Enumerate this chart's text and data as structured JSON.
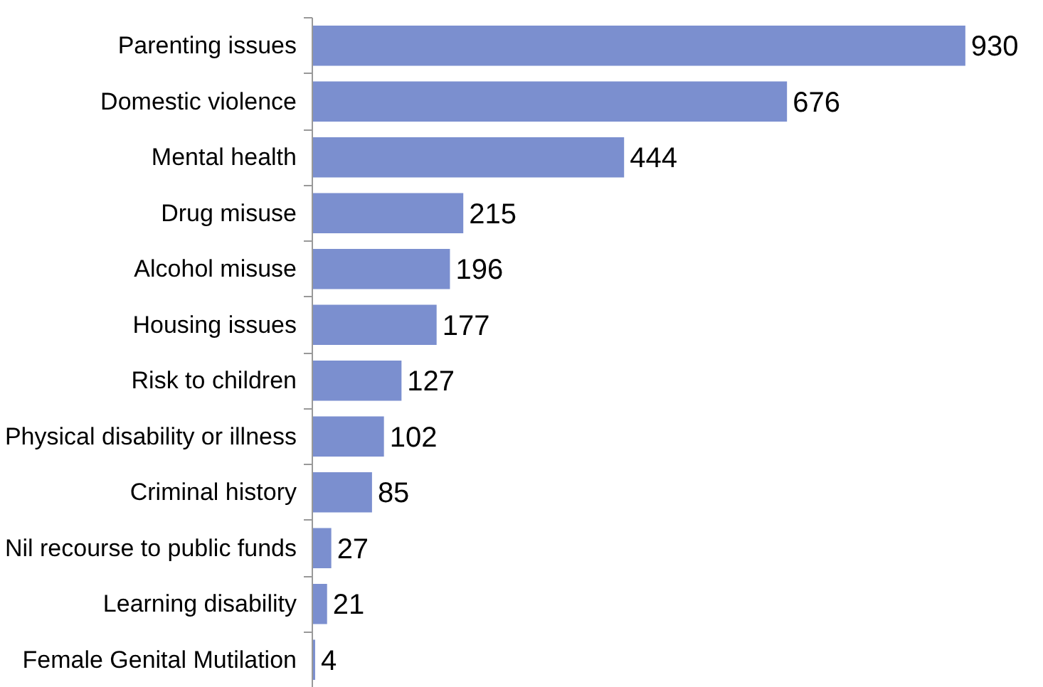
{
  "chart_data": {
    "type": "bar",
    "orientation": "horizontal",
    "categories": [
      "Parenting issues",
      "Domestic violence",
      "Mental health",
      "Drug misuse",
      "Alcohol misuse",
      "Housing issues",
      "Risk to children",
      "Physical disability or illness",
      "Criminal history",
      "Nil recourse to public funds",
      "Learning disability",
      "Female Genital Mutilation"
    ],
    "values": [
      930,
      676,
      444,
      215,
      196,
      177,
      127,
      102,
      85,
      27,
      21,
      4
    ],
    "color": "#7b8fcf",
    "data_labels": true
  }
}
